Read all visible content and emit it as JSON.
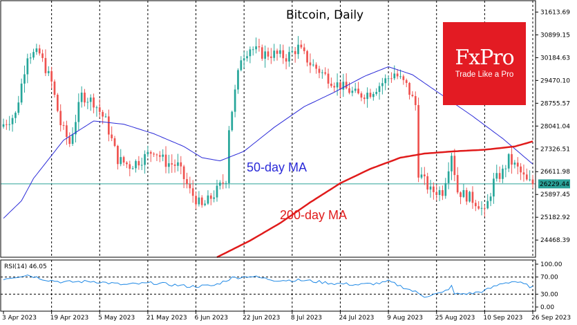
{
  "chart_data": {
    "type": "candlestick",
    "title": "Bitcoin, Daily",
    "y_ticks": [
      "31613.69",
      "30899.15",
      "30184.63",
      "29470.10",
      "28755.57",
      "28041.04",
      "27326.51",
      "26611.98",
      "25897.45",
      "25182.92",
      "24468.39"
    ],
    "y_range": [
      23930,
      31970
    ],
    "current_price": "26229.44",
    "x_ticks": [
      "3 Apr 2023",
      "19 Apr 2023",
      "5 May 2023",
      "21 May 2023",
      "6 Jun 2023",
      "22 Jun 2023",
      "8 Jul 2023",
      "24 Jul 2023",
      "9 Aug 2023",
      "25 Aug 2023",
      "10 Sep 2023",
      "26 Sep 2023"
    ],
    "x_tick_day_index": [
      0,
      16,
      32,
      48,
      64,
      80,
      96,
      112,
      128,
      144,
      160,
      176
    ],
    "anchor_closes": [
      [
        0,
        28100
      ],
      [
        4,
        28400
      ],
      [
        8,
        30300
      ],
      [
        12,
        30300
      ],
      [
        16,
        29400
      ],
      [
        19,
        28100
      ],
      [
        22,
        27500
      ],
      [
        26,
        29000
      ],
      [
        30,
        28800
      ],
      [
        34,
        28200
      ],
      [
        38,
        27000
      ],
      [
        42,
        26800
      ],
      [
        46,
        27000
      ],
      [
        50,
        27300
      ],
      [
        54,
        26900
      ],
      [
        58,
        26800
      ],
      [
        62,
        26000
      ],
      [
        66,
        25500
      ],
      [
        70,
        25900
      ],
      [
        74,
        26400
      ],
      [
        75,
        28000
      ],
      [
        79,
        30200
      ],
      [
        82,
        30500
      ],
      [
        86,
        30300
      ],
      [
        90,
        30300
      ],
      [
        94,
        30200
      ],
      [
        98,
        30500
      ],
      [
        102,
        30000
      ],
      [
        106,
        29700
      ],
      [
        110,
        29400
      ],
      [
        114,
        29200
      ],
      [
        118,
        29000
      ],
      [
        122,
        29100
      ],
      [
        126,
        29400
      ],
      [
        130,
        29700
      ],
      [
        134,
        29300
      ],
      [
        137,
        28700
      ],
      [
        138,
        26600
      ],
      [
        142,
        26000
      ],
      [
        146,
        26000
      ],
      [
        149,
        27200
      ],
      [
        151,
        26000
      ],
      [
        155,
        25800
      ],
      [
        158,
        25600
      ],
      [
        160,
        25300
      ],
      [
        163,
        26300
      ],
      [
        166,
        26600
      ],
      [
        168,
        27000
      ],
      [
        171,
        26700
      ],
      [
        174,
        26300
      ],
      [
        176,
        26229
      ]
    ],
    "rsi": {
      "label": "RSI(14) 46.05",
      "y_ticks": [
        "100.00",
        "70.00",
        "30.00",
        "0.00"
      ],
      "levels": [
        70,
        30
      ],
      "anchors": [
        [
          0,
          66
        ],
        [
          8,
          75
        ],
        [
          14,
          64
        ],
        [
          20,
          58
        ],
        [
          30,
          60
        ],
        [
          40,
          52
        ],
        [
          50,
          56
        ],
        [
          62,
          48
        ],
        [
          70,
          50
        ],
        [
          76,
          68
        ],
        [
          82,
          72
        ],
        [
          90,
          63
        ],
        [
          100,
          62
        ],
        [
          110,
          55
        ],
        [
          118,
          52
        ],
        [
          126,
          56
        ],
        [
          128,
          60
        ],
        [
          137,
          35
        ],
        [
          140,
          25
        ],
        [
          146,
          33
        ],
        [
          149,
          48
        ],
        [
          150,
          30
        ],
        [
          156,
          32
        ],
        [
          160,
          38
        ],
        [
          166,
          56
        ],
        [
          170,
          60
        ],
        [
          176,
          46
        ]
      ]
    },
    "moving_averages": [
      {
        "name": "50-day MA",
        "label": "50-day MA",
        "color": "#2a2ad8"
      },
      {
        "name": "200-day MA",
        "label": "200-day MA",
        "color": "#e01b1b"
      }
    ],
    "ma50_anchors": [
      [
        0,
        25150
      ],
      [
        6,
        25700
      ],
      [
        10,
        26400
      ],
      [
        20,
        27600
      ],
      [
        30,
        28200
      ],
      [
        40,
        28100
      ],
      [
        50,
        27800
      ],
      [
        60,
        27400
      ],
      [
        66,
        27050
      ],
      [
        72,
        26950
      ],
      [
        80,
        27250
      ],
      [
        90,
        28000
      ],
      [
        100,
        28650
      ],
      [
        110,
        29100
      ],
      [
        120,
        29600
      ],
      [
        128,
        29900
      ],
      [
        136,
        29650
      ],
      [
        146,
        29000
      ],
      [
        156,
        28350
      ],
      [
        166,
        27650
      ],
      [
        176,
        26850
      ]
    ],
    "ma200_anchors": [
      [
        71,
        23930
      ],
      [
        82,
        24450
      ],
      [
        92,
        25000
      ],
      [
        102,
        25650
      ],
      [
        112,
        26250
      ],
      [
        122,
        26700
      ],
      [
        132,
        27050
      ],
      [
        140,
        27180
      ],
      [
        150,
        27250
      ],
      [
        160,
        27300
      ],
      [
        170,
        27400
      ],
      [
        176,
        27560
      ]
    ],
    "colors": {
      "up": "#26a69a",
      "down": "#ef5350",
      "ma50": "#2a2ad8",
      "ma200": "#e01b1b",
      "price_line": "#2aa198",
      "rsi_line": "#1e88e5",
      "grid": "#000000"
    }
  },
  "logo": {
    "brand": "FxPro",
    "tagline": "Trade Like a Pro"
  }
}
